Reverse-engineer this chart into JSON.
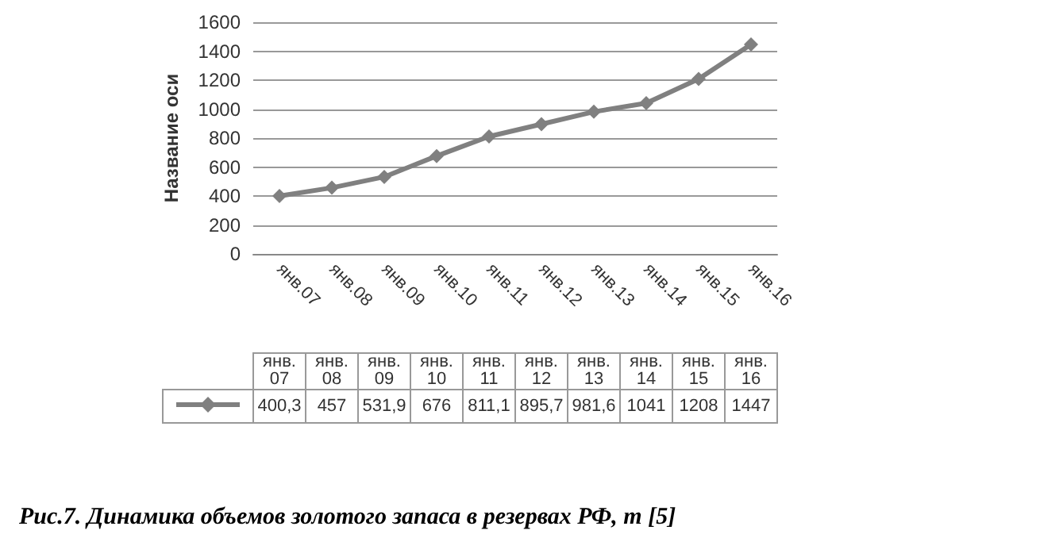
{
  "chart_data": {
    "type": "line",
    "ylabel": "Название оси",
    "categories": [
      "янв.07",
      "янв.08",
      "янв.09",
      "янв.10",
      "янв.11",
      "янв.12",
      "янв.13",
      "янв.14",
      "янв.15",
      "янв.16"
    ],
    "series": [
      {
        "color": "#808080",
        "values": [
          400.3,
          457,
          531.9,
          676,
          811.1,
          895.7,
          981.6,
          1041,
          1208,
          1447
        ],
        "value_labels": [
          "400,3",
          "457",
          "531,9",
          "676",
          "811,1",
          "895,7",
          "981,6",
          "1041",
          "1208",
          "1447"
        ]
      }
    ],
    "ylim": [
      0,
      1600
    ],
    "yticks": [
      0,
      200,
      400,
      600,
      800,
      1000,
      1200,
      1400,
      1600
    ],
    "grid": "y",
    "marker": "diamond",
    "annotations": [
      "Рис.7. Динамика объемов золотого запаса в резервах РФ, т [5]"
    ]
  }
}
